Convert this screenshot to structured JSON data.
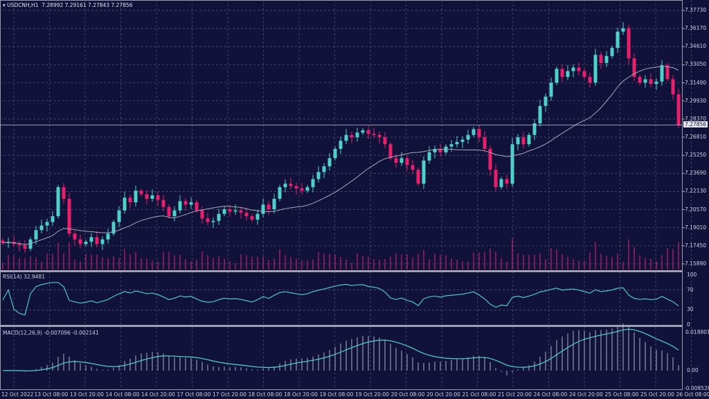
{
  "header": {
    "symbol": "USDCNH,H1",
    "ohlc": "7.28992 7.29161 7.27843 7.27856"
  },
  "current_price": "7.27856",
  "colors": {
    "background": "#10123a",
    "bull": "#4fd0c8",
    "bear": "#e8206c",
    "grid": "#55597c",
    "ma": "#a8a8b8",
    "volume": "#c8206a",
    "rsi": "#4fc8c8",
    "macd": "#4fc8c8"
  },
  "price_axis": [
    "7.37730",
    "7.36170",
    "7.34610",
    "7.33050",
    "7.31490",
    "7.29930",
    "7.28370",
    "7.26810",
    "7.25250",
    "7.23690",
    "7.22130",
    "7.20570",
    "7.19010",
    "7.17450",
    "7.15890"
  ],
  "time_axis": [
    "12 Oct 2022",
    "13 Oct 08:00",
    "13 Oct 20:00",
    "14 Oct 08:00",
    "14 Oct 20:00",
    "17 Oct 08:00",
    "17 Oct 20:00",
    "18 Oct 08:00",
    "18 Oct 20:00",
    "19 Oct 08:00",
    "19 Oct 20:00",
    "20 Oct 08:00",
    "20 Oct 20:00",
    "21 Oct 08:00",
    "21 Oct 20:00",
    "24 Oct 08:00",
    "24 Oct 20:00",
    "25 Oct 08:00",
    "25 Oct 20:00",
    "26 Oct 08:00"
  ],
  "rsi": {
    "label": "RSI(14) 32.9481",
    "axis": [
      "100",
      "70",
      "30",
      "0"
    ]
  },
  "macd": {
    "label": "MACD(12,26,9) -0.007096 -0.002141",
    "axis": [
      "0.018801",
      "0.00",
      "-0.008528"
    ]
  },
  "chart_data": {
    "type": "candlestick",
    "ylim": [
      7.1589,
      7.3773
    ],
    "closes": [
      7.177,
      7.178,
      7.176,
      7.175,
      7.172,
      7.18,
      7.188,
      7.192,
      7.195,
      7.2,
      7.225,
      7.215,
      7.185,
      7.18,
      7.176,
      7.178,
      7.182,
      7.176,
      7.18,
      7.185,
      7.195,
      7.205,
      7.216,
      7.212,
      7.222,
      7.219,
      7.215,
      7.218,
      7.214,
      7.208,
      7.2,
      7.205,
      7.213,
      7.21,
      7.212,
      7.205,
      7.198,
      7.195,
      7.196,
      7.202,
      7.206,
      7.204,
      7.205,
      7.203,
      7.2,
      7.197,
      7.202,
      7.21,
      7.206,
      7.215,
      7.225,
      7.228,
      7.226,
      7.224,
      7.222,
      7.225,
      7.232,
      7.238,
      7.243,
      7.25,
      7.258,
      7.265,
      7.27,
      7.268,
      7.272,
      7.274,
      7.271,
      7.27,
      7.268,
      7.262,
      7.25,
      7.246,
      7.25,
      7.244,
      7.24,
      7.228,
      7.248,
      7.255,
      7.258,
      7.255,
      7.26,
      7.262,
      7.264,
      7.266,
      7.27,
      7.275,
      7.268,
      7.258,
      7.24,
      7.225,
      7.232,
      7.228,
      7.262,
      7.268,
      7.262,
      7.27,
      7.28,
      7.295,
      7.303,
      7.315,
      7.327,
      7.32,
      7.325,
      7.328,
      7.325,
      7.32,
      7.315,
      7.339,
      7.332,
      7.338,
      7.345,
      7.359,
      7.362,
      7.336,
      7.32,
      7.315,
      7.318,
      7.314,
      7.316,
      7.33,
      7.318,
      7.305,
      7.27856
    ]
  }
}
